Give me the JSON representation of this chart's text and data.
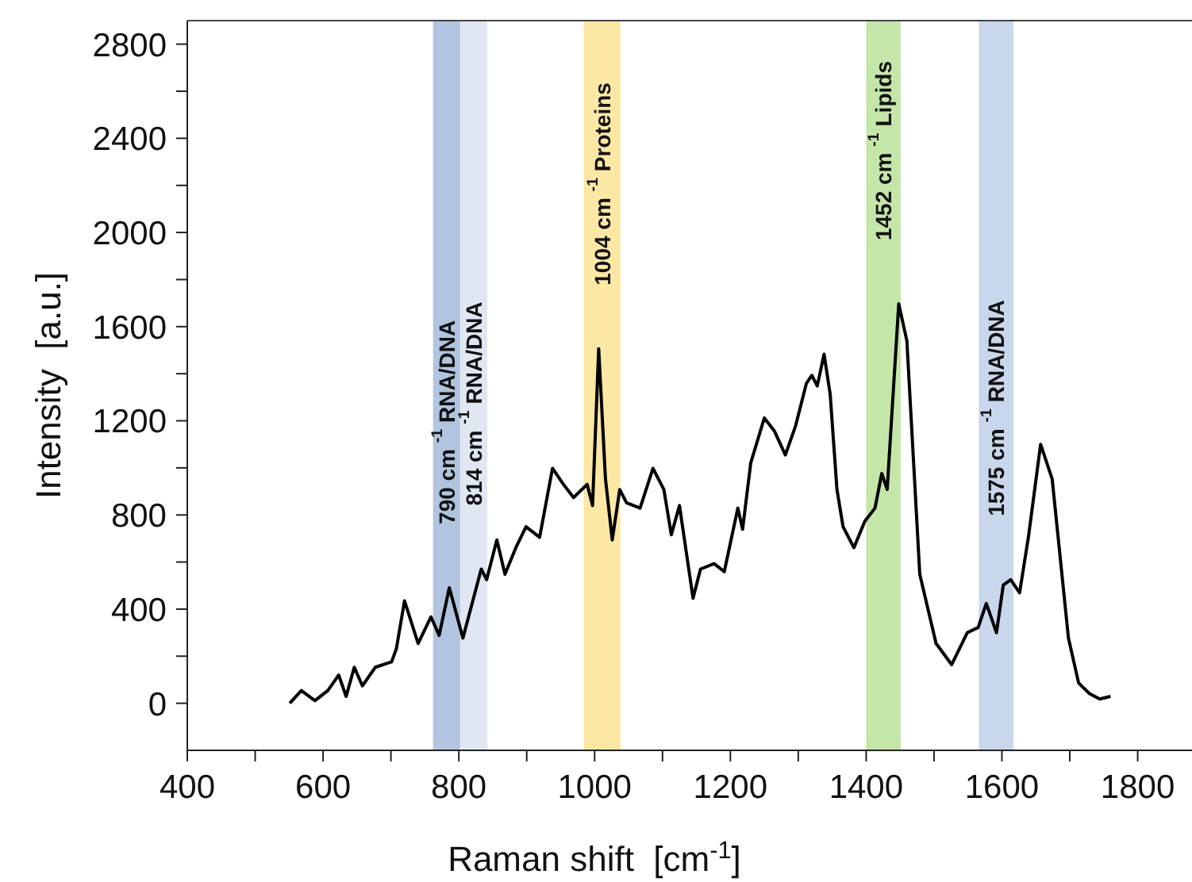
{
  "chart_data": {
    "type": "line",
    "xlabel": "Raman shift  [cm$^{-1}$]",
    "ylabel": "Intensity  [a.u.]",
    "xlim": [
      400,
      1880
    ],
    "ylim": [
      -200,
      2900
    ],
    "xticks": [
      400,
      {
        "value": 500,
        "label": null
      },
      600,
      {
        "value": 700,
        "label": null
      },
      800,
      {
        "value": 900,
        "label": null
      },
      1000,
      {
        "value": 1100,
        "label": null
      },
      1200,
      {
        "value": 1300,
        "label": null
      },
      1400,
      {
        "value": 1500,
        "label": null
      },
      1600,
      {
        "value": 1700,
        "label": null
      },
      1800
    ],
    "yticks": [
      0,
      {
        "value": 200,
        "label": null
      },
      400,
      {
        "value": 600,
        "label": null
      },
      800,
      {
        "value": 1000,
        "label": null
      },
      1200,
      {
        "value": 1400,
        "label": null
      },
      1600,
      {
        "value": 1800,
        "label": null
      },
      2000,
      {
        "value": 2200,
        "label": null
      },
      2400,
      {
        "value": 2600,
        "label": null
      },
      2800
    ],
    "grid": false,
    "marker": "none",
    "line_style": "solid",
    "series": [
      {
        "color": "#000000",
        "x": [
          551,
          568,
          588,
          607,
          623,
          634,
          646,
          658,
          677,
          701,
          708,
          720,
          740,
          759,
          771,
          786,
          806,
          833,
          841,
          856,
          868,
          884,
          899,
          919,
          938,
          954,
          969,
          989,
          997,
          1006,
          1016,
          1026,
          1037,
          1047,
          1067,
          1086,
          1102,
          1113,
          1125,
          1145,
          1156,
          1176,
          1191,
          1211,
          1218,
          1230,
          1250,
          1265,
          1281,
          1296,
          1312,
          1320,
          1328,
          1338,
          1347,
          1357,
          1366,
          1382,
          1398,
          1413,
          1423,
          1431,
          1448,
          1460,
          1479,
          1503,
          1526,
          1549,
          1565,
          1577,
          1592,
          1602,
          1613,
          1626,
          1639,
          1657,
          1674,
          1698,
          1713,
          1729,
          1744,
          1760
        ],
        "values": [
          0,
          54,
          11,
          54,
          120,
          29,
          153,
          74,
          153,
          176,
          232,
          435,
          254,
          367,
          288,
          491,
          277,
          570,
          525,
          694,
          548,
          661,
          750,
          705,
          998,
          930,
          874,
          930,
          840,
          1506,
          953,
          694,
          908,
          852,
          829,
          998,
          908,
          716,
          840,
          446,
          570,
          593,
          559,
          829,
          739,
          1021,
          1212,
          1156,
          1055,
          1178,
          1359,
          1393,
          1348,
          1483,
          1314,
          908,
          750,
          661,
          773,
          829,
          976,
          908,
          1697,
          1539,
          548,
          254,
          164,
          300,
          322,
          424,
          300,
          502,
          525,
          469,
          705,
          1100,
          953,
          277,
          86,
          41,
          18,
          29
        ]
      }
    ],
    "bands": [
      {
        "axis": "x",
        "from": 762,
        "to": 802,
        "color": "#a9bfdd",
        "label": "790 cm $^{-1}$ RNA/DNA"
      },
      {
        "axis": "x",
        "from": 802,
        "to": 842,
        "color": "#dde4f2",
        "label": "814 cm $^{-1}$ RNA/DNA"
      },
      {
        "axis": "x",
        "from": 984,
        "to": 1038,
        "color": "#fde49a",
        "label": "1004 cm $^{-1}$ Proteins"
      },
      {
        "axis": "x",
        "from": 1400,
        "to": 1451,
        "color": "#bfe3a0",
        "label": "1452 cm $^{-1}$ Lipids"
      },
      {
        "axis": "x",
        "from": 1566,
        "to": 1617,
        "color": "#c3d3ea",
        "label": "1575 cm $^{-1}$ RNA/DNA"
      }
    ]
  }
}
